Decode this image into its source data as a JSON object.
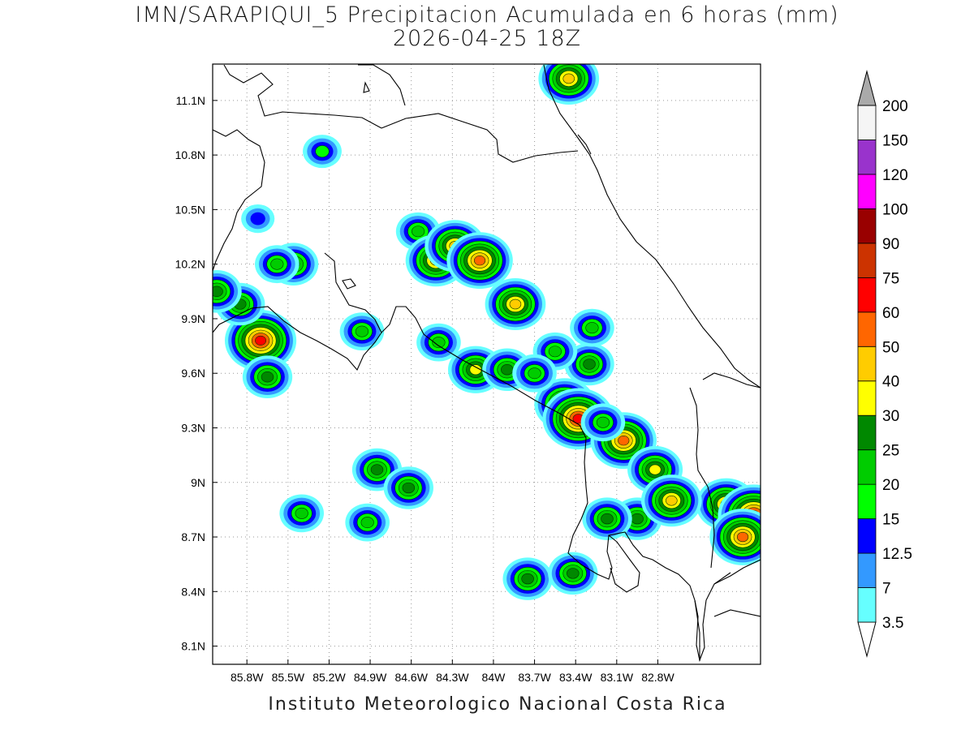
{
  "title": {
    "line1": "IMN/SARAPIQUI_5 Precipitacion Acumulada en 6 horas (mm)",
    "line2": "2026-04-25 18Z"
  },
  "footer": "Instituto Meteorologico Nacional Costa Rica",
  "map": {
    "lon_range": [
      -86.05,
      -82.05
    ],
    "lat_range": [
      8.0,
      11.3
    ],
    "lon_ticks": [
      {
        "value": -85.8,
        "label": "85.8W"
      },
      {
        "value": -85.5,
        "label": "85.5W"
      },
      {
        "value": -85.2,
        "label": "85.2W"
      },
      {
        "value": -84.9,
        "label": "84.9W"
      },
      {
        "value": -84.6,
        "label": "84.6W"
      },
      {
        "value": -84.3,
        "label": "84.3W"
      },
      {
        "value": -84.0,
        "label": "84W"
      },
      {
        "value": -83.7,
        "label": "83.7W"
      },
      {
        "value": -83.4,
        "label": "83.4W"
      },
      {
        "value": -83.1,
        "label": "83.1W"
      },
      {
        "value": -82.8,
        "label": "82.8W"
      }
    ],
    "lat_ticks": [
      {
        "value": 8.1,
        "label": "8.1N"
      },
      {
        "value": 8.4,
        "label": "8.4N"
      },
      {
        "value": 8.7,
        "label": "8.7N"
      },
      {
        "value": 9.0,
        "label": "9N"
      },
      {
        "value": 9.3,
        "label": "9.3N"
      },
      {
        "value": 9.6,
        "label": "9.6N"
      },
      {
        "value": 9.9,
        "label": "9.9N"
      },
      {
        "value": 10.2,
        "label": "10.2N"
      },
      {
        "value": 10.5,
        "label": "10.5N"
      },
      {
        "value": 10.8,
        "label": "10.8N"
      },
      {
        "value": 11.1,
        "label": "11.1N"
      }
    ],
    "grid": true,
    "coastline_color": "#000000"
  },
  "colorbar": {
    "levels": [
      {
        "label": "3.5",
        "color": "#66ffff"
      },
      {
        "label": "7",
        "color": "#3399ff"
      },
      {
        "label": "12.5",
        "color": "#0000ff"
      },
      {
        "label": "15",
        "color": "#00ff00"
      },
      {
        "label": "20",
        "color": "#00cc00"
      },
      {
        "label": "25",
        "color": "#008800"
      },
      {
        "label": "30",
        "color": "#ffff00"
      },
      {
        "label": "40",
        "color": "#ffcc00"
      },
      {
        "label": "50",
        "color": "#ff6600"
      },
      {
        "label": "60",
        "color": "#ff0000"
      },
      {
        "label": "75",
        "color": "#cc3300"
      },
      {
        "label": "90",
        "color": "#990000"
      },
      {
        "label": "100",
        "color": "#ff00ff"
      },
      {
        "label": "120",
        "color": "#9933cc"
      },
      {
        "label": "150",
        "color": "#f5f5f5"
      },
      {
        "label": "200",
        "color": "#aaaaaa"
      }
    ]
  },
  "precip_cells": [
    {
      "lon": -85.7,
      "lat": 9.78,
      "peak": 60
    },
    {
      "lon": -85.65,
      "lat": 9.58,
      "peak": 25
    },
    {
      "lon": -85.85,
      "lat": 9.98,
      "peak": 25
    },
    {
      "lon": -86.02,
      "lat": 10.05,
      "peak": 25
    },
    {
      "lon": -85.46,
      "lat": 10.2,
      "peak": 25
    },
    {
      "lon": -85.72,
      "lat": 10.45,
      "peak": 12.5
    },
    {
      "lon": -85.58,
      "lat": 10.2,
      "peak": 20
    },
    {
      "lon": -84.96,
      "lat": 9.83,
      "peak": 20
    },
    {
      "lon": -84.55,
      "lat": 10.38,
      "peak": 20
    },
    {
      "lon": -84.42,
      "lat": 10.22,
      "peak": 40
    },
    {
      "lon": -84.28,
      "lat": 10.3,
      "peak": 40
    },
    {
      "lon": -84.1,
      "lat": 10.22,
      "peak": 50
    },
    {
      "lon": -83.84,
      "lat": 9.98,
      "peak": 40
    },
    {
      "lon": -84.13,
      "lat": 9.62,
      "peak": 30
    },
    {
      "lon": -83.9,
      "lat": 9.62,
      "peak": 25
    },
    {
      "lon": -84.4,
      "lat": 9.77,
      "peak": 20
    },
    {
      "lon": -83.48,
      "lat": 9.43,
      "peak": 40
    },
    {
      "lon": -83.38,
      "lat": 9.35,
      "peak": 60
    },
    {
      "lon": -83.05,
      "lat": 9.23,
      "peak": 50
    },
    {
      "lon": -83.45,
      "lat": 11.22,
      "peak": 40
    },
    {
      "lon": -83.3,
      "lat": 9.65,
      "peak": 25
    },
    {
      "lon": -83.28,
      "lat": 9.85,
      "peak": 20
    },
    {
      "lon": -84.85,
      "lat": 9.07,
      "peak": 25
    },
    {
      "lon": -84.62,
      "lat": 8.97,
      "peak": 25
    },
    {
      "lon": -85.4,
      "lat": 8.83,
      "peak": 20
    },
    {
      "lon": -84.92,
      "lat": 8.78,
      "peak": 20
    },
    {
      "lon": -83.75,
      "lat": 8.47,
      "peak": 25
    },
    {
      "lon": -83.42,
      "lat": 8.5,
      "peak": 25
    },
    {
      "lon": -82.3,
      "lat": 8.88,
      "peak": 40
    },
    {
      "lon": -82.1,
      "lat": 8.82,
      "peak": 60
    },
    {
      "lon": -82.18,
      "lat": 8.7,
      "peak": 50
    },
    {
      "lon": -82.82,
      "lat": 9.07,
      "peak": 30
    },
    {
      "lon": -82.95,
      "lat": 8.8,
      "peak": 25
    },
    {
      "lon": -83.17,
      "lat": 8.8,
      "peak": 25
    },
    {
      "lon": -82.7,
      "lat": 8.9,
      "peak": 40
    },
    {
      "lon": -83.2,
      "lat": 9.33,
      "peak": 20
    },
    {
      "lon": -83.55,
      "lat": 9.72,
      "peak": 20
    },
    {
      "lon": -85.25,
      "lat": 10.82,
      "peak": 15
    },
    {
      "lon": -83.7,
      "lat": 9.6,
      "peak": 20
    }
  ]
}
